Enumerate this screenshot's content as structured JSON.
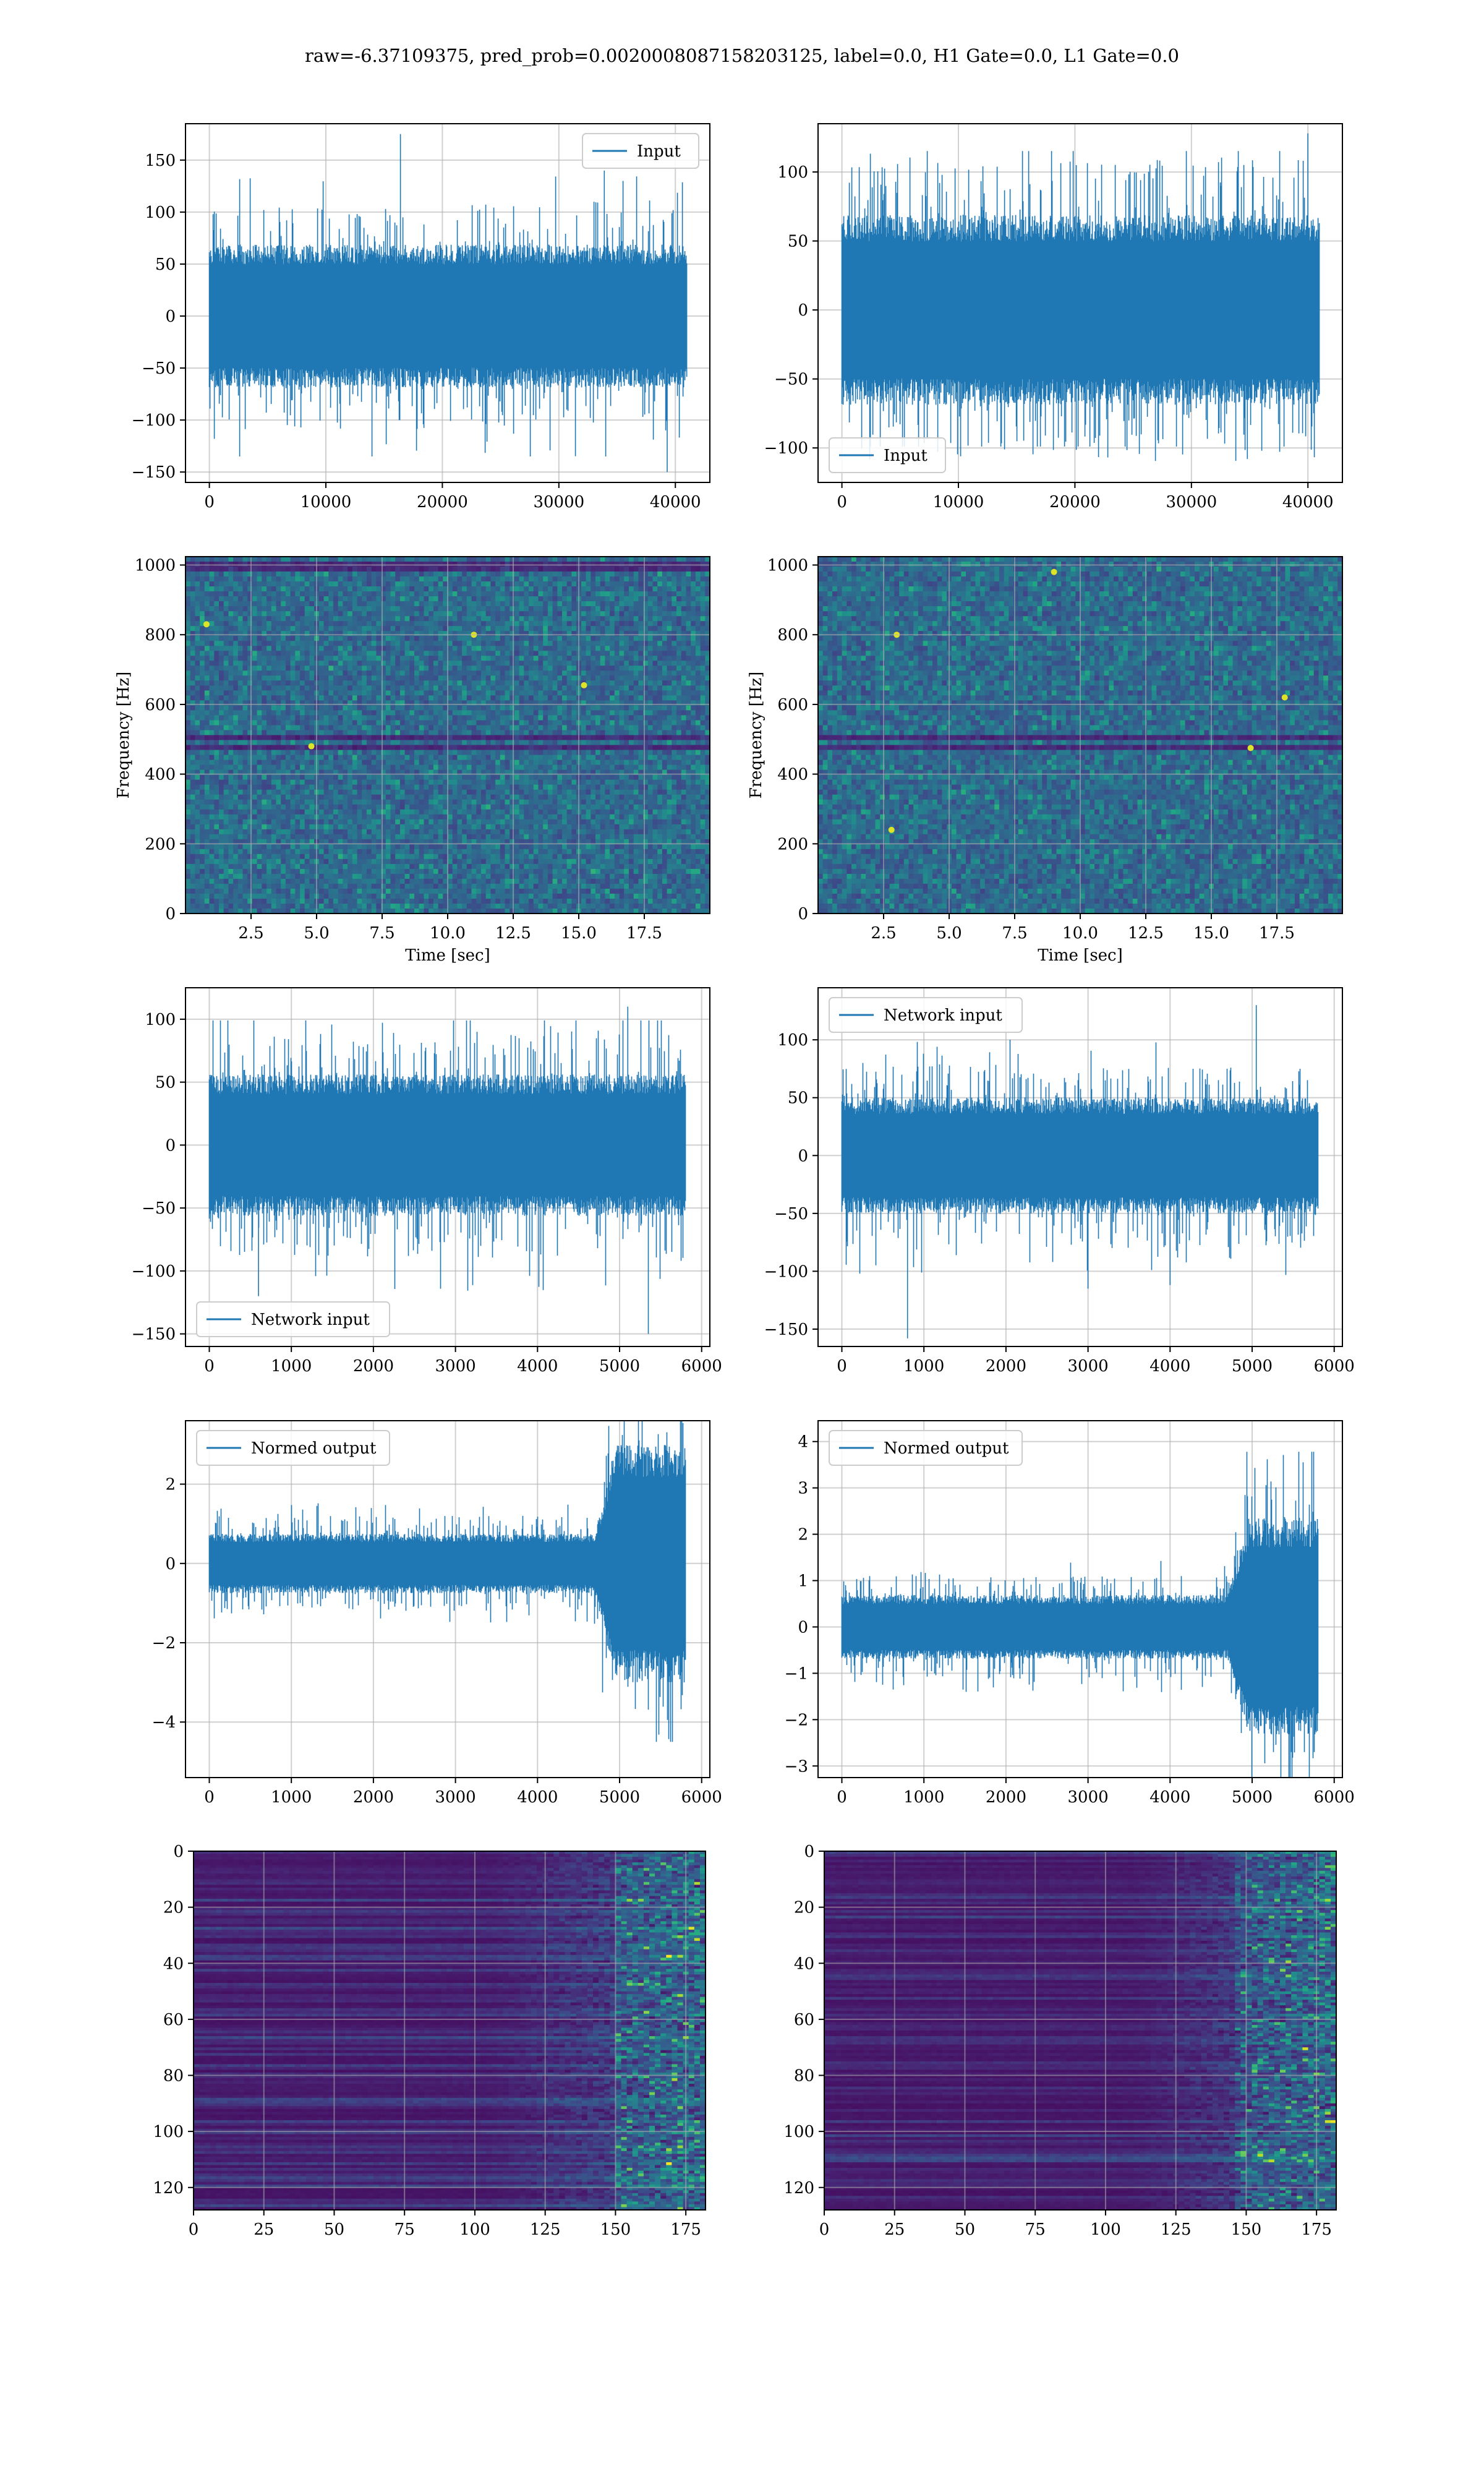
{
  "figure": {
    "title": "raw=-6.37109375, pred_prob=0.0020008087158203125, label=0.0, H1 Gate=0.0, L1 Gate=0.0"
  },
  "colors": {
    "line": "#1f77b4",
    "grid": "#b0b0b0",
    "viridis_dark": "#440154",
    "viridis_blue": "#31688e",
    "viridis_teal": "#21918c",
    "viridis_green": "#5ec962",
    "viridis_yellow": "#fde725"
  },
  "chart_data": [
    {
      "type": "line",
      "title": "",
      "legend": {
        "entries": [
          "Input"
        ],
        "placement": "upper right"
      },
      "xlim": [
        -2048,
        42960
      ],
      "ylim": [
        -160,
        185
      ],
      "xticks": [
        0,
        10000,
        20000,
        30000,
        40000
      ],
      "yticks": [
        -150,
        -100,
        -50,
        0,
        50,
        100,
        150
      ],
      "xlabel": "",
      "ylabel": "",
      "series": [
        {
          "x_range": [
            0,
            40960
          ],
          "n": 40960,
          "envelope_core": 55,
          "envelope_peak_max": 175,
          "envelope_peak_min": -150,
          "spikes": [
            [
              16400,
              175
            ],
            [
              39300,
              -150
            ],
            [
              33900,
              140
            ]
          ]
        }
      ],
      "grid": true
    },
    {
      "type": "line",
      "title": "",
      "legend": {
        "entries": [
          "Input"
        ],
        "placement": "lower left"
      },
      "xlim": [
        -2048,
        42960
      ],
      "ylim": [
        -125,
        135
      ],
      "xticks": [
        0,
        10000,
        20000,
        30000,
        40000
      ],
      "yticks": [
        -100,
        -50,
        0,
        50,
        100
      ],
      "xlabel": "",
      "ylabel": "",
      "series": [
        {
          "x_range": [
            0,
            40960
          ],
          "n": 40960,
          "envelope_core": 55,
          "envelope_peak_max": 128,
          "envelope_peak_min": -110,
          "spikes": [
            [
              40000,
              128
            ],
            [
              34800,
              -108
            ]
          ]
        }
      ],
      "grid": true
    },
    {
      "type": "heatmap",
      "title": "",
      "xlabel": "Time [sec]",
      "ylabel": "Frequency [Hz]",
      "xlim": [
        0,
        20
      ],
      "ylim": [
        0,
        1024
      ],
      "xticks": [
        2.5,
        5.0,
        7.5,
        10.0,
        12.5,
        15.0,
        17.5
      ],
      "xtick_labels": [
        "2.5",
        "5.0",
        "7.5",
        "10.0",
        "12.5",
        "15.0",
        "17.5"
      ],
      "yticks": [
        0,
        200,
        400,
        600,
        800,
        1000
      ],
      "colormap": "viridis",
      "features": {
        "dark_bands_hz": [
          505,
          480,
          995
        ],
        "hot_spots": [
          [
            4.8,
            480
          ],
          [
            15.2,
            655
          ],
          [
            11.0,
            800
          ],
          [
            0.8,
            830
          ]
        ]
      },
      "grid": true
    },
    {
      "type": "heatmap",
      "title": "",
      "xlabel": "Time [sec]",
      "ylabel": "Frequency [Hz]",
      "xlim": [
        0,
        20
      ],
      "ylim": [
        0,
        1024
      ],
      "xticks": [
        2.5,
        5.0,
        7.5,
        10.0,
        12.5,
        15.0,
        17.5
      ],
      "xtick_labels": [
        "2.5",
        "5.0",
        "7.5",
        "10.0",
        "12.5",
        "15.0",
        "17.5"
      ],
      "yticks": [
        0,
        200,
        400,
        600,
        800,
        1000
      ],
      "colormap": "viridis",
      "features": {
        "dark_bands_hz": [
          505,
          480
        ],
        "hot_spots": [
          [
            3.0,
            800
          ],
          [
            17.8,
            620
          ],
          [
            16.5,
            475
          ],
          [
            2.8,
            240
          ],
          [
            9.0,
            980
          ]
        ]
      },
      "grid": true
    },
    {
      "type": "line",
      "title": "",
      "legend": {
        "entries": [
          "Network input"
        ],
        "placement": "lower left"
      },
      "xlim": [
        -290,
        6100
      ],
      "ylim": [
        -160,
        125
      ],
      "xticks": [
        0,
        1000,
        2000,
        3000,
        4000,
        5000,
        6000
      ],
      "yticks": [
        -150,
        -100,
        -50,
        0,
        50,
        100
      ],
      "xlabel": "",
      "ylabel": "",
      "series": [
        {
          "x_range": [
            0,
            5800
          ],
          "n": 5800,
          "envelope_core": 45,
          "envelope_peak_max": 110,
          "envelope_peak_min": -150,
          "spikes": [
            [
              5100,
              110
            ],
            [
              5350,
              -150
            ],
            [
              600,
              -120
            ]
          ]
        }
      ],
      "grid": true
    },
    {
      "type": "line",
      "title": "",
      "legend": {
        "entries": [
          "Network input"
        ],
        "placement": "upper left"
      },
      "xlim": [
        -290,
        6100
      ],
      "ylim": [
        -165,
        145
      ],
      "xticks": [
        0,
        1000,
        2000,
        3000,
        4000,
        5000,
        6000
      ],
      "yticks": [
        -150,
        -100,
        -50,
        0,
        50,
        100
      ],
      "xlabel": "",
      "ylabel": "",
      "series": [
        {
          "x_range": [
            0,
            5800
          ],
          "n": 5800,
          "envelope_core": 40,
          "envelope_peak_max": 130,
          "envelope_peak_min": -158,
          "spikes": [
            [
              5050,
              130
            ],
            [
              800,
              -158
            ],
            [
              3000,
              -115
            ],
            [
              4000,
              -112
            ]
          ]
        }
      ],
      "grid": true
    },
    {
      "type": "line",
      "title": "",
      "legend": {
        "entries": [
          "Normed output"
        ],
        "placement": "upper left"
      },
      "xlim": [
        -290,
        6100
      ],
      "ylim": [
        -5.4,
        3.6
      ],
      "xticks": [
        0,
        1000,
        2000,
        3000,
        4000,
        5000,
        6000
      ],
      "yticks": [
        -4,
        -2,
        0,
        2
      ],
      "xlabel": "",
      "ylabel": "",
      "series": [
        {
          "x_range": [
            0,
            5800
          ],
          "n": 5800,
          "envelope_core": 0.6,
          "envelope_peak_max": 3.3,
          "envelope_peak_min": -5.0,
          "burst_start": 4700,
          "burst_envelope": 2.4
        }
      ],
      "grid": true
    },
    {
      "type": "line",
      "title": "",
      "legend": {
        "entries": [
          "Normed output"
        ],
        "placement": "upper left"
      },
      "xlim": [
        -290,
        6100
      ],
      "ylim": [
        -3.25,
        4.45
      ],
      "xticks": [
        0,
        1000,
        2000,
        3000,
        4000,
        5000,
        6000
      ],
      "yticks": [
        -3,
        -2,
        -1,
        0,
        1,
        2,
        3,
        4
      ],
      "xlabel": "",
      "ylabel": "",
      "series": [
        {
          "x_range": [
            0,
            5800
          ],
          "n": 5800,
          "envelope_core": 0.55,
          "envelope_peak_max": 4.2,
          "envelope_peak_min": -3.0,
          "burst_start": 4700,
          "burst_envelope": 1.9
        }
      ],
      "grid": true
    },
    {
      "type": "heatmap",
      "title": "",
      "xlabel": "",
      "ylabel": "",
      "xlim": [
        0,
        182
      ],
      "ylim": [
        128,
        0
      ],
      "xticks": [
        0,
        25,
        50,
        75,
        100,
        125,
        150,
        175
      ],
      "yticks": [
        0,
        20,
        40,
        60,
        80,
        100,
        120
      ],
      "colormap": "viridis",
      "rows": 128,
      "cols": 182,
      "features": {
        "activity_onset_col": 105,
        "bright_cols_from": 150
      },
      "grid": true
    },
    {
      "type": "heatmap",
      "title": "",
      "xlabel": "",
      "ylabel": "",
      "xlim": [
        0,
        182
      ],
      "ylim": [
        128,
        0
      ],
      "xticks": [
        0,
        25,
        50,
        75,
        100,
        125,
        150,
        175
      ],
      "yticks": [
        0,
        20,
        40,
        60,
        80,
        100,
        120
      ],
      "colormap": "viridis",
      "rows": 128,
      "cols": 182,
      "features": {
        "activity_onset_col": 110,
        "bright_cols_from": 145
      },
      "grid": true
    }
  ]
}
